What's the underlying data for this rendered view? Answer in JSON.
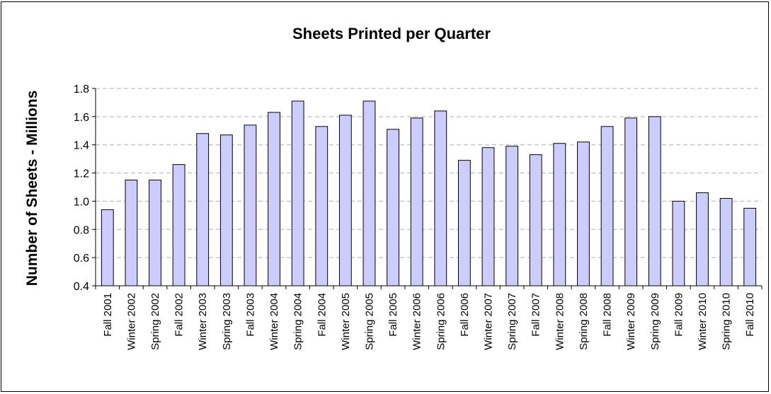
{
  "chart_data": {
    "type": "bar",
    "title": "Sheets Printed per Quarter",
    "xlabel": "",
    "ylabel": "Number of Sheets - Millions",
    "ylim": [
      0.4,
      1.8
    ],
    "yticks": [
      "0.4",
      "0.6",
      "0.8",
      "1.0",
      "1.2",
      "1.4",
      "1.6",
      "1.8"
    ],
    "grid": "horizontal dashed",
    "legend": "none",
    "bar_color": "#ccccff",
    "bar_edge_color": "#000000",
    "grid_color": "#b0b0b0",
    "categories": [
      "Fall 2001",
      "Winter 2002",
      "Spring 2002",
      "Fall 2002",
      "Winter 2003",
      "Spring 2003",
      "Fall 2003",
      "Winter 2004",
      "Spring 2004",
      "Fall 2004",
      "Winter 2005",
      "Spring 2005",
      "Fall 2005",
      "Winter 2006",
      "Spring 2006",
      "Fall 2006",
      "Winter 2007",
      "Spring 2007",
      "Fall 2007",
      "Winter 2008",
      "Spring 2008",
      "Fall 2008",
      "Winter 2009",
      "Spring 2009",
      "Fall 2009",
      "Winter 2010",
      "Spring 2010",
      "Fall 2010"
    ],
    "values": [
      0.94,
      1.15,
      1.15,
      1.26,
      1.48,
      1.47,
      1.54,
      1.63,
      1.71,
      1.53,
      1.61,
      1.71,
      1.51,
      1.59,
      1.64,
      1.29,
      1.38,
      1.39,
      1.33,
      1.41,
      1.42,
      1.53,
      1.59,
      1.6,
      1.0,
      1.06,
      1.02,
      0.95
    ]
  }
}
